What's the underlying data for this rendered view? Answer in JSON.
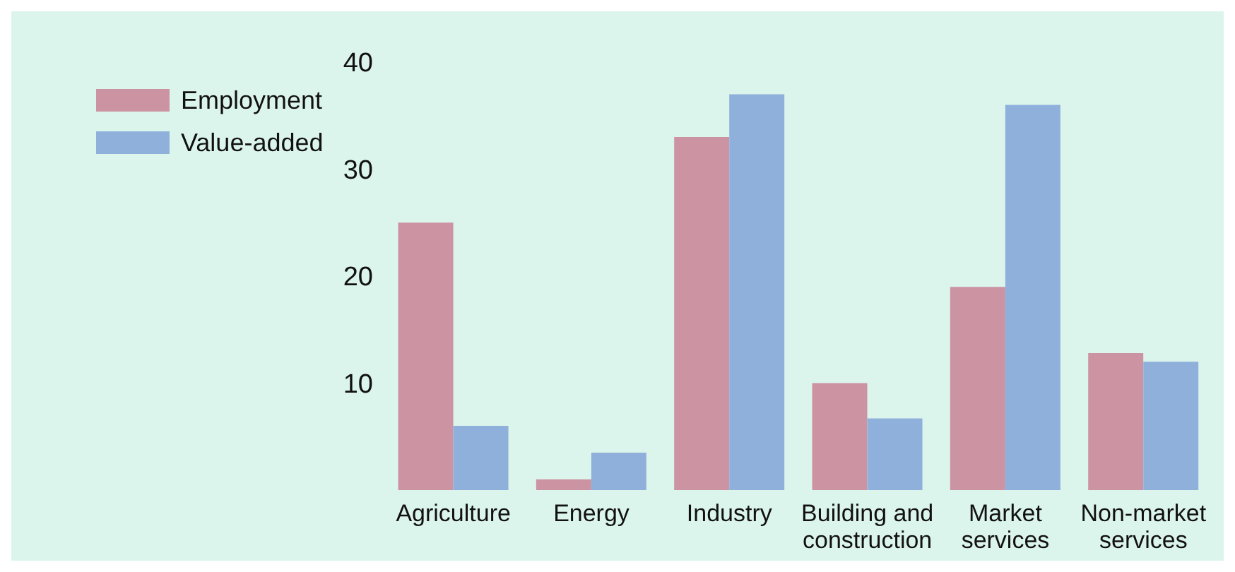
{
  "chart_data": {
    "type": "bar",
    "categories": [
      "Agriculture",
      "Energy",
      "Industry",
      "Building and construction",
      "Market services",
      "Non-market services"
    ],
    "series": [
      {
        "name": "Employment",
        "color": "#cc93a3",
        "values": [
          25,
          1,
          33,
          10,
          19,
          12.8
        ]
      },
      {
        "name": "Value-added",
        "color": "#8fb0db",
        "values": [
          6,
          3.5,
          37,
          6.7,
          36,
          12
        ]
      }
    ],
    "ylim": [
      0,
      40
    ],
    "yticks": [
      10,
      20,
      30,
      40
    ],
    "grid": false,
    "legend": "top left"
  }
}
